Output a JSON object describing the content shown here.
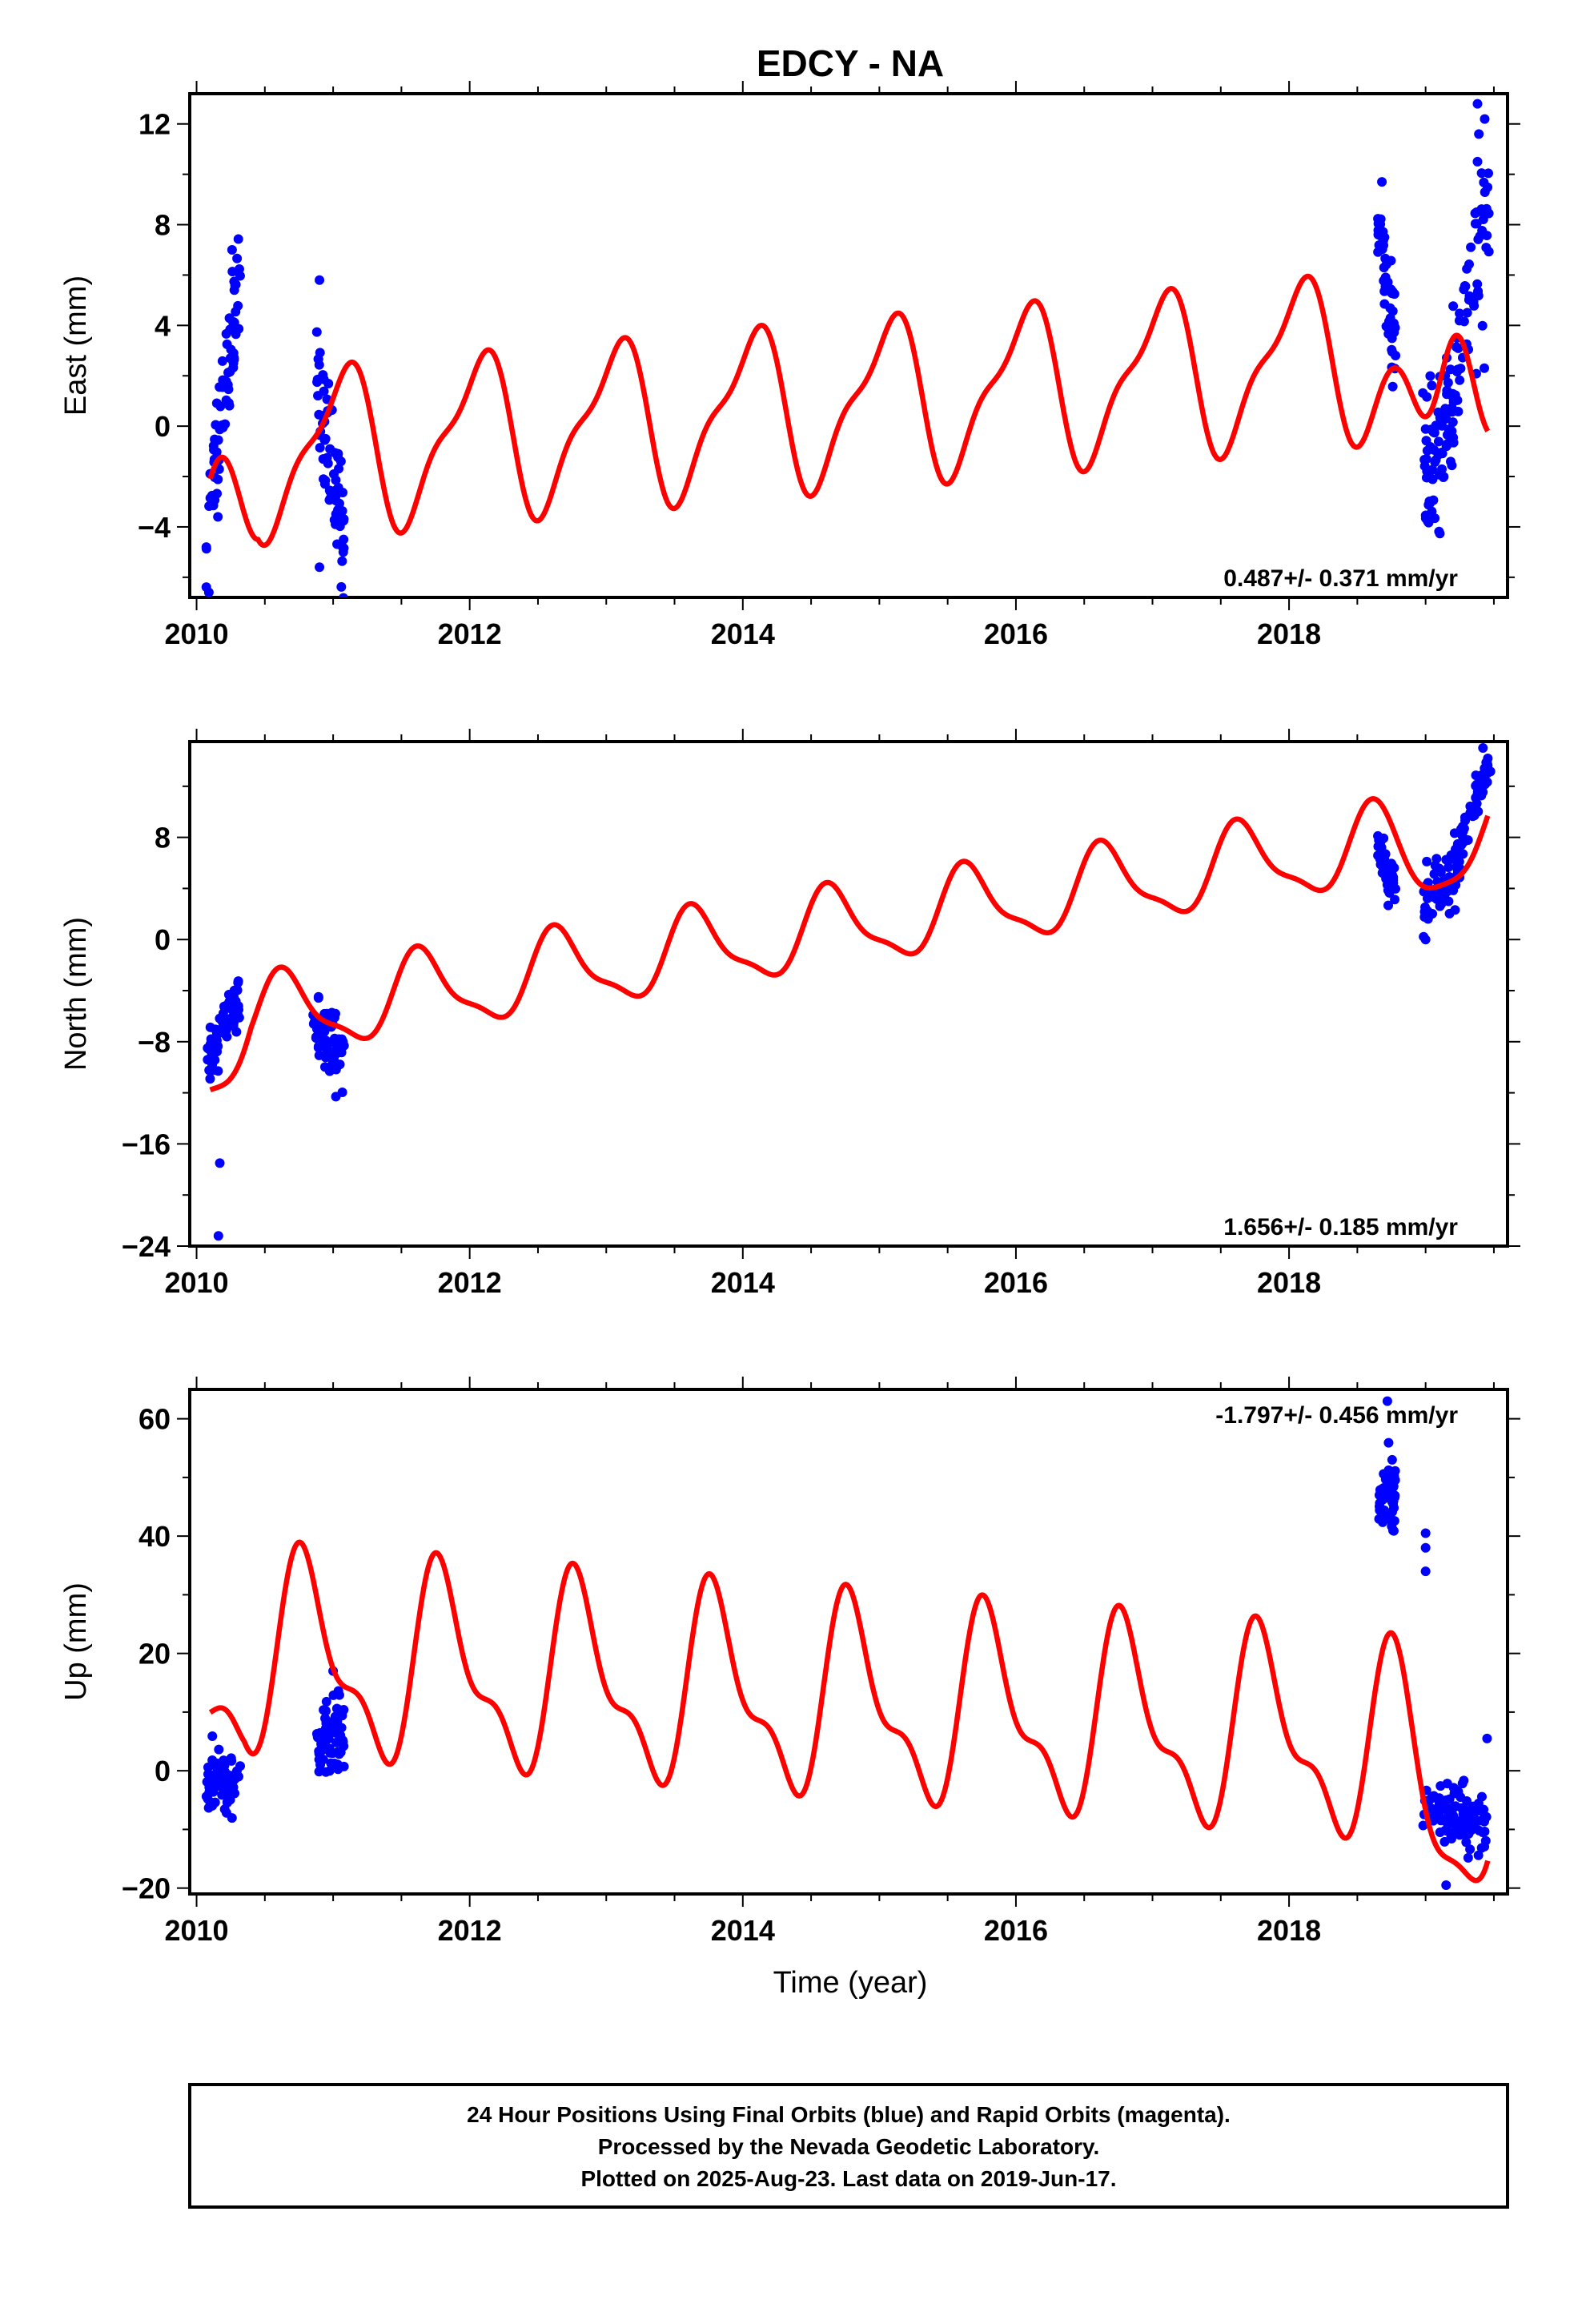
{
  "title": "EDCY - NA",
  "x_axis_label": "Time (year)",
  "footer": {
    "line1": "24 Hour Positions Using Final Orbits (blue) and Rapid Orbits (magenta).",
    "line2": "Processed by the Nevada Geodetic Laboratory.",
    "line3": "Plotted on 2025-Aug-23. Last data on 2019-Jun-17."
  },
  "colors": {
    "data_points": "#0000ff",
    "model_curve": "#ff0000",
    "frame": "#000000"
  },
  "chart_data": [
    {
      "type": "scatter",
      "id": "east",
      "ylabel": "East (mm)",
      "rate_label": "0.487+/- 0.371 mm/yr",
      "rate_position": "bottom-right",
      "xlim": [
        2009.95,
        2019.6
      ],
      "ylim": [
        -6.8,
        13.2
      ],
      "xticks": [
        2010,
        2012,
        2014,
        2016,
        2018
      ],
      "xtick_labels": [
        "2010",
        "2012",
        "2014",
        "2016",
        "2018"
      ],
      "yticks": [
        -4,
        0,
        4,
        8,
        12
      ],
      "ytick_labels": [
        "−4",
        "0",
        "4",
        "8",
        "12"
      ],
      "model": {
        "rate": 0.487,
        "offset": 0.8,
        "t0": 2014.5,
        "annual_amp": 3.0,
        "annual_phase": 1.2,
        "semi_amp": 1.0,
        "semi_phase": -0.9,
        "early_adjust": -4.0,
        "early_end": 2010.45,
        "late_dip": -5.0,
        "late_center": 2019.05,
        "late_width": 0.18
      },
      "series": [
        {
          "name": "Final Orbits",
          "clusters": [
            {
              "t": [
                2010.07,
                2010.32
              ],
              "center": [
                -4.5,
                6.5
              ],
              "n": 70,
              "spread": 1.2
            },
            {
              "t": [
                2010.88,
                2011.08
              ],
              "center": [
                1.0,
                -4.0
              ],
              "n": 70,
              "spread": 1.3
            },
            {
              "t": [
                2018.65,
                2018.78
              ],
              "center": [
                8.5,
                3.0
              ],
              "n": 55,
              "spread": 1.0
            },
            {
              "t": [
                2018.98,
                2019.22
              ],
              "center": [
                -2.5,
                1.0
              ],
              "n": 80,
              "spread": 1.4
            },
            {
              "t": [
                2019.22,
                2019.47
              ],
              "center": [
                2.5,
                9.0
              ],
              "n": 55,
              "spread": 1.5
            }
          ],
          "extra_points": [
            [
              2010.09,
              -6.6
            ],
            [
              2010.26,
              7.0
            ],
            [
              2010.9,
              5.8
            ],
            [
              2010.9,
              -5.6
            ],
            [
              2018.68,
              9.7
            ],
            [
              2019.38,
              12.8
            ],
            [
              2019.39,
              11.6
            ],
            [
              2019.38,
              10.5
            ],
            [
              2019.43,
              2.3
            ]
          ]
        }
      ]
    },
    {
      "type": "scatter",
      "id": "north",
      "ylabel": "North (mm)",
      "rate_label": "1.656+/- 0.185 mm/yr",
      "rate_position": "bottom-right",
      "xlim": [
        2009.95,
        2019.6
      ],
      "ylim": [
        -24,
        15.5
      ],
      "xticks": [
        2010,
        2012,
        2014,
        2016,
        2018
      ],
      "xtick_labels": [
        "2010",
        "2012",
        "2014",
        "2016",
        "2018"
      ],
      "yticks": [
        -24,
        -16,
        -8,
        0,
        8
      ],
      "ytick_labels": [
        "−24",
        "−16",
        "−8",
        "0",
        "8"
      ],
      "model": {
        "rate": 1.656,
        "offset": 0.5,
        "t0": 2014.5,
        "annual_amp": 3.0,
        "annual_phase": -2.5,
        "semi_amp": 0.9,
        "semi_phase": 0.5,
        "early_adjust": -3.0,
        "early_end": 2010.4,
        "late_dip": -2.5,
        "late_center": 2019.0,
        "late_width": 0.2
      },
      "series": [
        {
          "name": "Final Orbits",
          "clusters": [
            {
              "t": [
                2010.08,
                2010.32
              ],
              "center": [
                -9.5,
                -4.5
              ],
              "n": 70,
              "spread": 1.0
            },
            {
              "t": [
                2010.85,
                2011.08
              ],
              "center": [
                -7.0,
                -9.0
              ],
              "n": 70,
              "spread": 1.2
            },
            {
              "t": [
                2018.65,
                2018.78
              ],
              "center": [
                7.0,
                4.0
              ],
              "n": 55,
              "spread": 0.9
            },
            {
              "t": [
                2018.98,
                2019.25
              ],
              "center": [
                2.0,
                6.0
              ],
              "n": 80,
              "spread": 1.2
            },
            {
              "t": [
                2019.25,
                2019.48
              ],
              "center": [
                7.0,
                14.5
              ],
              "n": 55,
              "spread": 0.8
            }
          ],
          "extra_points": [
            [
              2010.17,
              -17.5
            ],
            [
              2010.16,
              -23.2
            ],
            [
              2011.02,
              -12.3
            ],
            [
              2019.42,
              15.0
            ]
          ]
        }
      ]
    },
    {
      "type": "scatter",
      "id": "up",
      "ylabel": "Up (mm)",
      "rate_label": "-1.797+/- 0.456 mm/yr",
      "rate_position": "top-right",
      "xlim": [
        2009.95,
        2019.6
      ],
      "ylim": [
        -21,
        65
      ],
      "xticks": [
        2010,
        2012,
        2014,
        2016,
        2018
      ],
      "xtick_labels": [
        "2010",
        "2012",
        "2014",
        "2016",
        "2018"
      ],
      "yticks": [
        -20,
        0,
        20,
        40,
        60
      ],
      "ytick_labels": [
        "−20",
        "0",
        "20",
        "40",
        "60"
      ],
      "model": {
        "rate": -1.797,
        "offset": 12,
        "t0": 2014.5,
        "annual_amp": 15.0,
        "annual_phase": -3.5,
        "semi_amp": 6.5,
        "semi_phase": -1.25,
        "early_adjust": -6.0,
        "early_end": 2010.35,
        "late_dip": -14.0,
        "late_center": 2019.15,
        "late_width": 0.25
      },
      "series": [
        {
          "name": "Final Orbits",
          "clusters": [
            {
              "t": [
                2010.07,
                2010.32
              ],
              "center": [
                -2.0,
                -2.0
              ],
              "n": 70,
              "spread": 2.5
            },
            {
              "t": [
                2010.88,
                2011.08
              ],
              "center": [
                5.0,
                7.0
              ],
              "n": 75,
              "spread": 3.0
            },
            {
              "t": [
                2018.65,
                2018.78
              ],
              "center": [
                47.0,
                47.0
              ],
              "n": 60,
              "spread": 3.5
            },
            {
              "t": [
                2018.98,
                2019.45
              ],
              "center": [
                -7.0,
                -8.0
              ],
              "n": 110,
              "spread": 2.5
            }
          ],
          "extra_points": [
            [
              2018.72,
              63.0
            ],
            [
              2019.0,
              40.5
            ],
            [
              2019.0,
              38.0
            ],
            [
              2019.0,
              34.0
            ],
            [
              2011.0,
              17.0
            ],
            [
              2019.45,
              5.5
            ],
            [
              2019.15,
              -19.5
            ]
          ]
        }
      ]
    }
  ]
}
